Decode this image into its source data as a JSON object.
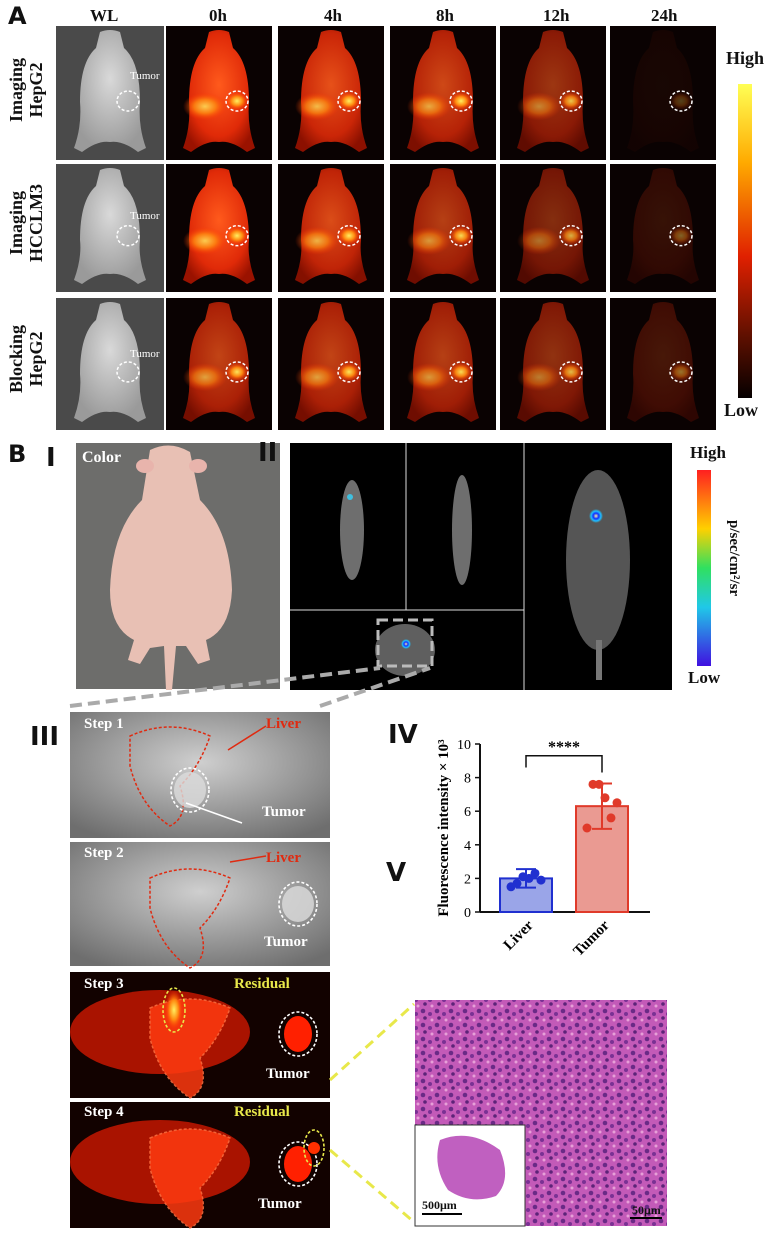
{
  "panel_a": {
    "letter": "A",
    "time_headers": [
      "WL",
      "0h",
      "4h",
      "8h",
      "12h",
      "24h"
    ],
    "rows": [
      {
        "line1": "Imaging",
        "line2": "HepG2",
        "tumor_label": "Tumor"
      },
      {
        "line1": "Imaging",
        "line2": "HCCLM3",
        "tumor_label": "Tumor"
      },
      {
        "line1": "Blocking",
        "line2": "HepG2",
        "tumor_label": "Tumor"
      }
    ],
    "scale_high": "High",
    "scale_low": "Low"
  },
  "panel_b": {
    "letter": "B",
    "sub_i": "I",
    "sub_ii": "II",
    "sub_iii": "III",
    "sub_iv": "IV",
    "sub_v": "V",
    "color_label": "Color",
    "scale_high": "High",
    "scale_low": "Low",
    "scale_unit": "p/sec/cm²/sr",
    "steps": [
      {
        "label": "Step 1",
        "liver": "Liver",
        "tumor": "Tumor"
      },
      {
        "label": "Step 2",
        "liver": "Liver",
        "tumor": "Tumor"
      },
      {
        "label": "Step 3",
        "residual": "Residual",
        "tumor": "Tumor"
      },
      {
        "label": "Step 4",
        "residual": "Residual",
        "tumor": "Tumor"
      }
    ],
    "histology_scale_inset": "500μm",
    "histology_scale_main": "50μm"
  },
  "chart_data": {
    "type": "bar",
    "categories": [
      "Liver",
      "Tumor"
    ],
    "values": [
      2.0,
      6.3
    ],
    "errors": [
      0.55,
      1.35
    ],
    "points": [
      [
        1.5,
        1.7,
        2.1,
        2.0,
        2.3,
        1.9
      ],
      [
        5.0,
        7.6,
        7.6,
        6.8,
        5.6,
        6.5
      ]
    ],
    "ylabel": "Fluorescence intensity × 10³",
    "ylim": [
      0,
      10
    ],
    "yticks": [
      0,
      2,
      4,
      6,
      8,
      10
    ],
    "significance": "****",
    "colors": {
      "Liver": "#2030d0",
      "Tumor": "#e03a2a"
    }
  }
}
